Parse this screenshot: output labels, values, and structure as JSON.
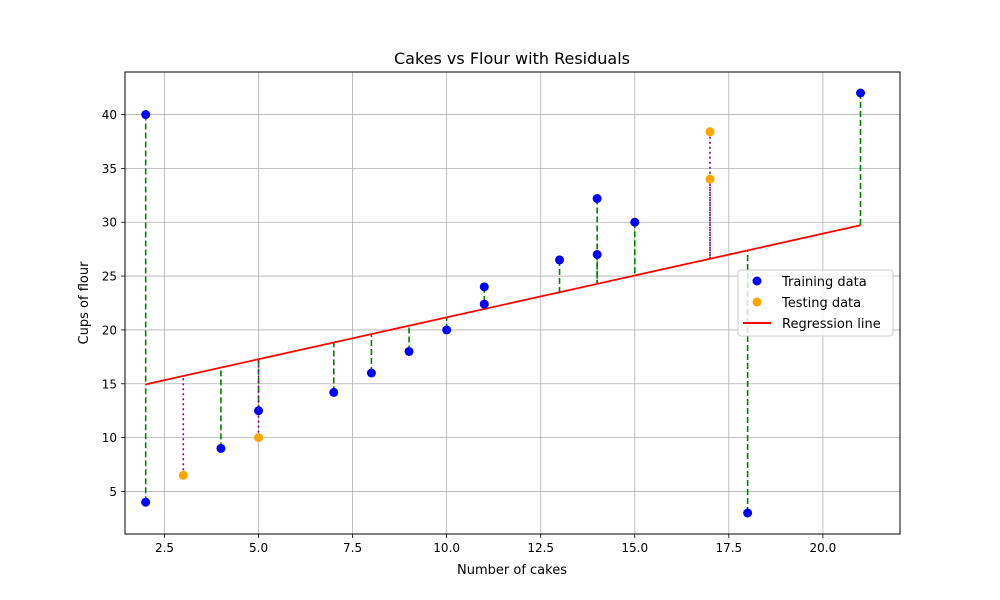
{
  "chart_data": {
    "type": "scatter",
    "title": "Cakes vs Flour with Residuals",
    "xlabel": "Number of cakes",
    "ylabel": "Cups of flour",
    "xlim": [
      1.45,
      22.05
    ],
    "ylim": [
      1.05,
      43.95
    ],
    "xticks": [
      "2.5",
      "5.0",
      "7.5",
      "10.0",
      "12.5",
      "15.0",
      "17.5",
      "20.0"
    ],
    "xtick_values": [
      2.5,
      5.0,
      7.5,
      10.0,
      12.5,
      15.0,
      17.5,
      20.0
    ],
    "yticks": [
      "5",
      "10",
      "15",
      "20",
      "25",
      "30",
      "35",
      "40"
    ],
    "ytick_values": [
      5,
      10,
      15,
      20,
      25,
      30,
      35,
      40
    ],
    "grid": true,
    "legend_position": "center-right",
    "regression": {
      "slope": 0.7772,
      "intercept": 13.394,
      "x_range": [
        2,
        21
      ]
    },
    "series": [
      {
        "name": "Training data",
        "color": "#0000ff",
        "marker": "circle",
        "residual_style": "dashed",
        "residual_color": "#008000",
        "points": [
          {
            "x": 2,
            "y": 40
          },
          {
            "x": 2,
            "y": 4
          },
          {
            "x": 4,
            "y": 9
          },
          {
            "x": 5,
            "y": 12.5
          },
          {
            "x": 7,
            "y": 14.2
          },
          {
            "x": 8,
            "y": 16
          },
          {
            "x": 9,
            "y": 18
          },
          {
            "x": 10,
            "y": 20
          },
          {
            "x": 11,
            "y": 24
          },
          {
            "x": 11,
            "y": 22.4
          },
          {
            "x": 13,
            "y": 26.5
          },
          {
            "x": 14,
            "y": 32.2
          },
          {
            "x": 14,
            "y": 27
          },
          {
            "x": 15,
            "y": 30
          },
          {
            "x": 18,
            "y": 3
          },
          {
            "x": 21,
            "y": 42
          }
        ]
      },
      {
        "name": "Testing data",
        "color": "#ffa500",
        "marker": "circle",
        "residual_style": "dotted",
        "residual_color": "#800080",
        "points": [
          {
            "x": 3,
            "y": 6.5
          },
          {
            "x": 5,
            "y": 10
          },
          {
            "x": 17,
            "y": 38.4
          },
          {
            "x": 17,
            "y": 34
          }
        ]
      }
    ],
    "line_series": {
      "name": "Regression line",
      "color": "#ff0000"
    }
  }
}
